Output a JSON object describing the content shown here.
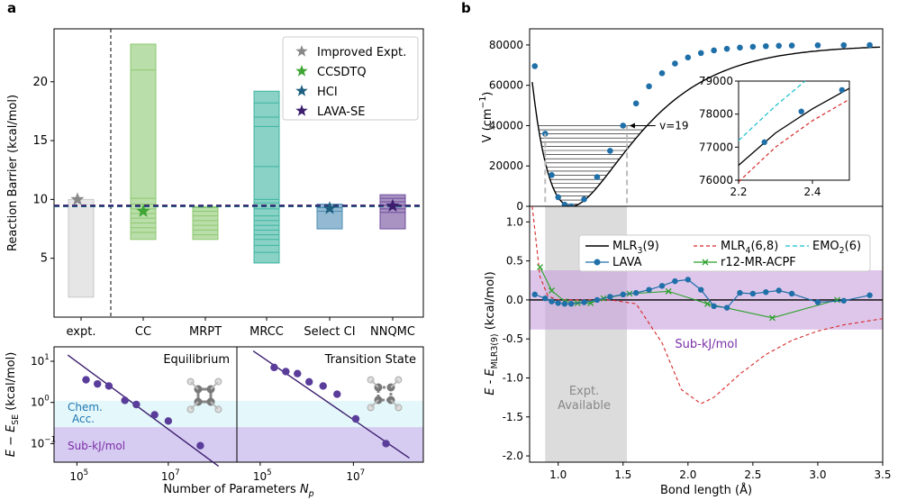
{
  "panel_labels": {
    "a": "a",
    "b": "b"
  },
  "colors": {
    "expt": "#c8c8c8",
    "cc": "#8cc870",
    "mrpt": "#8cc870",
    "mrcc": "#3cb4a0",
    "selectci": "#4b8cb4",
    "nnqmc": "#6e4b9b",
    "lava": "#1f6fa8",
    "mlr4": "#d62728",
    "emo2": "#17becf",
    "r12": "#2ca02c",
    "subkj": "#c8a0dc",
    "chem": "#d8f4f8",
    "band": "#b4a0e6"
  },
  "chart_data": [
    {
      "id": "a-top",
      "type": "bar",
      "ylabel": "Reaction Barrier (kcal/mol)",
      "ylim": [
        0,
        24.5
      ],
      "yticks": [
        5,
        10,
        15,
        20
      ],
      "categories": [
        "expt.",
        "CC",
        "MRPT",
        "MRCC",
        "Select CI",
        "NNQMC"
      ],
      "ranges": [
        [
          1.7,
          10.0
        ],
        [
          6.6,
          23.2
        ],
        [
          6.6,
          9.4
        ],
        [
          4.6,
          19.2
        ],
        [
          7.5,
          9.6
        ],
        [
          7.5,
          10.4
        ]
      ],
      "lines": {
        "CC": [
          21.0,
          10.1,
          9.6,
          9.2,
          8.8,
          8.4,
          8.0,
          7.6,
          7.2
        ],
        "MRPT": [
          9.3,
          9.0,
          8.6,
          8.2,
          7.8,
          7.4,
          7.0
        ],
        "MRCC": [
          18.2,
          17.0,
          16.2,
          12.8,
          10.0,
          9.7,
          9.2,
          8.6,
          8.2,
          7.8,
          7.4,
          7.0,
          6.6,
          6.1,
          5.5
        ],
        "Select CI": [
          9.3,
          9.0
        ],
        "NNQMC": [
          10.1,
          9.8,
          9.5,
          9.2,
          8.9
        ]
      },
      "stars": [
        {
          "name": "Improved Expt.",
          "cat": "expt.",
          "y": 10.0,
          "color": "#888888"
        },
        {
          "name": "CCSDTQ",
          "cat": "CC",
          "y": 9.0,
          "color": "#3fa535"
        },
        {
          "name": "HCI",
          "cat": "Select CI",
          "y": 9.25,
          "color": "#1f5f7f"
        },
        {
          "name": "LAVA-SE",
          "cat": "NNQMC",
          "y": 9.45,
          "color": "#3c1e6e"
        }
      ],
      "hlines": [
        9.4,
        9.5
      ],
      "legend": [
        "Improved Expt.",
        "CCSDTQ",
        "HCI",
        "LAVA-SE"
      ]
    },
    {
      "id": "a-bottom",
      "type": "scatter",
      "ylabel": "E − E",
      "ylabel_sub": "SE",
      "ylabel_unit": "(kcal/mol)",
      "xlabel": "Number of Parameters N",
      "xlabel_sub": "p",
      "panels": [
        {
          "title": "Equilibrium",
          "x": [
            5.2,
            5.45,
            5.7,
            6.05,
            6.3,
            6.7,
            7.0,
            7.7
          ],
          "y": [
            0.55,
            0.45,
            0.4,
            0.05,
            -0.05,
            -0.3,
            -0.45,
            -1.05
          ],
          "fit": [
            [
              4.8,
              1.15
            ],
            [
              8.1,
              -1.55
            ]
          ]
        },
        {
          "title": "Transition State",
          "x": [
            5.3,
            5.55,
            5.8,
            6.05,
            6.35,
            6.65,
            7.05,
            7.7
          ],
          "y": [
            0.85,
            0.75,
            0.7,
            0.5,
            0.4,
            0.2,
            -0.4,
            -1.0
          ],
          "fit": [
            [
              4.85,
              1.25
            ],
            [
              8.2,
              -1.35
            ]
          ]
        }
      ],
      "chem_label": [
        "Chem.",
        "Acc."
      ],
      "subkj_label": "Sub-kJ/mol",
      "yticks": [
        {
          "v": 1,
          "t": "10",
          "e": "1"
        },
        {
          "v": 0,
          "t": "10",
          "e": "0"
        },
        {
          "v": -1,
          "t": "10",
          "e": "−1"
        }
      ],
      "xticks": [
        {
          "v": 5,
          "t": "10",
          "e": "5"
        },
        {
          "v": 7,
          "t": "10",
          "e": "7"
        }
      ]
    },
    {
      "id": "b-top",
      "type": "line",
      "ylabel": "V (cm",
      "ylabel_sup": "−1",
      "ylim": [
        0,
        88000
      ],
      "yticks": [
        0,
        20000,
        40000,
        60000,
        80000
      ],
      "xlim": [
        0.78,
        3.5
      ],
      "lava_x": [
        0.82,
        0.9,
        0.95,
        1.0,
        1.05,
        1.1,
        1.2,
        1.3,
        1.4,
        1.5,
        1.6,
        1.7,
        1.8,
        1.9,
        2.0,
        2.1,
        2.2,
        2.3,
        2.4,
        2.5,
        2.6,
        2.7,
        2.8,
        3.0,
        3.2,
        3.4
      ],
      "lava_y": [
        69500,
        36000,
        15500,
        4500,
        800,
        0,
        3500,
        14500,
        27500,
        40000,
        51000,
        59500,
        66000,
        70800,
        73800,
        76000,
        77300,
        78100,
        78700,
        79100,
        79400,
        79600,
        79700,
        79850,
        79900,
        79950
      ],
      "levels": 19,
      "vibration_label": "v=19",
      "inset": {
        "xlim": [
          2.2,
          2.5
        ],
        "ylim": [
          76000,
          79000
        ],
        "xticks": [
          2.2,
          2.4
        ],
        "yticks": [
          76000,
          77000,
          78000,
          79000
        ],
        "lava_x": [
          2.27,
          2.37,
          2.48
        ],
        "lava_y": [
          77150,
          78080,
          78730
        ]
      }
    },
    {
      "id": "b-bottom",
      "type": "line",
      "ylabel": "E - E",
      "ylabel_sub": "MLR3(9)",
      "ylabel_unit": "(kcal/mol)",
      "xlabel": "Bond length (Å)",
      "xlim": [
        0.78,
        3.5
      ],
      "ylim": [
        -2.08,
        1.2
      ],
      "yticks": [
        1.0,
        0.5,
        0.0,
        -0.5,
        -1.0,
        -1.5,
        -2.0
      ],
      "xticks": [
        1.0,
        1.5,
        2.0,
        2.5,
        3.0,
        3.5
      ],
      "lava_x": [
        0.82,
        0.9,
        0.95,
        1.0,
        1.05,
        1.1,
        1.2,
        1.3,
        1.4,
        1.5,
        1.6,
        1.7,
        1.8,
        1.9,
        2.0,
        2.1,
        2.2,
        2.3,
        2.4,
        2.5,
        2.6,
        2.7,
        2.8,
        3.0,
        3.2,
        3.4
      ],
      "lava_y": [
        0.07,
        0.02,
        -0.02,
        -0.04,
        -0.05,
        -0.05,
        -0.03,
        0.0,
        0.04,
        0.07,
        0.09,
        0.13,
        0.18,
        0.24,
        0.26,
        0.13,
        -0.08,
        -0.1,
        0.09,
        0.08,
        0.1,
        0.12,
        0.08,
        -0.03,
        -0.01,
        0.06
      ],
      "r12_x": [
        0.86,
        0.95,
        1.05,
        1.15,
        1.25,
        1.35,
        1.55,
        1.85,
        2.15,
        2.65,
        3.15
      ],
      "r12_y": [
        0.42,
        0.12,
        -0.02,
        -0.04,
        -0.04,
        0.02,
        0.08,
        0.11,
        -0.05,
        -0.23,
        0.0
      ],
      "mlr4_x": [
        0.8,
        0.86,
        0.92,
        1.0,
        1.2,
        1.4,
        1.6,
        1.8,
        1.95,
        2.1,
        2.2,
        2.4,
        2.6,
        2.8,
        3.0,
        3.2,
        3.5
      ],
      "mlr4_y": [
        1.2,
        0.3,
        0.05,
        0.0,
        0.0,
        0.0,
        -0.05,
        -0.55,
        -1.15,
        -1.33,
        -1.25,
        -0.95,
        -0.7,
        -0.52,
        -0.4,
        -0.32,
        -0.24
      ],
      "expt_range": [
        0.9,
        1.53
      ],
      "expt_label": [
        "Expt.",
        "Available"
      ],
      "subkj_band": [
        -0.38,
        0.38
      ],
      "subkj_label": "Sub-kJ/mol",
      "legend": [
        "MLR",
        "LAVA",
        "MLR",
        "r12-MR-ACPF",
        "EMO"
      ],
      "legend_full": {
        "mlr3": {
          "a": "MLR",
          "s": "3",
          "b": "(9)"
        },
        "mlr4": {
          "a": "MLR",
          "s": "4",
          "b": "(6,8)"
        },
        "emo2": {
          "a": "EMO",
          "s": "2",
          "b": "(6)"
        },
        "lava": "LAVA",
        "r12": "r12-MR-ACPF"
      }
    }
  ]
}
